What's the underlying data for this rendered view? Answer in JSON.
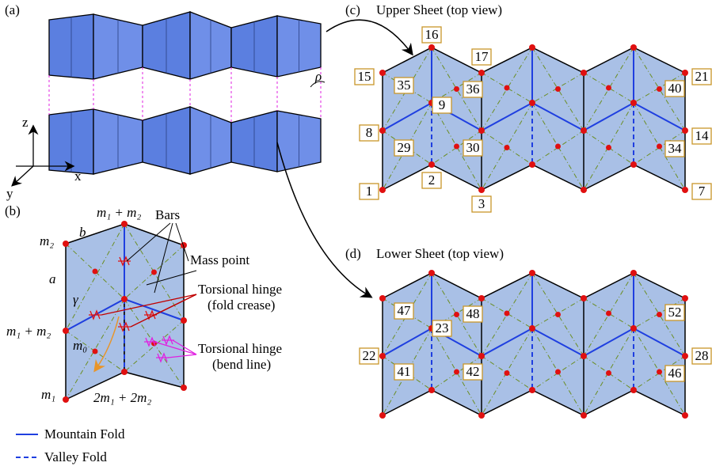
{
  "panel_a": {
    "label": "(a)",
    "angle": "ρ",
    "axes": {
      "z": "z",
      "x": "x",
      "y": "y"
    }
  },
  "panel_b": {
    "label": "(b)",
    "top_mass": "m₁ + m₂",
    "edge_b": "b",
    "left_top_mass": "m₂",
    "edge_a": "a",
    "angle": "γ",
    "left_mid_mass": "m₁ + m₂",
    "center_mass": "m₀",
    "bottom_left_mass": "m₁",
    "bottom_mass": "2m₁ + 2m₂",
    "callouts": {
      "bars": "Bars",
      "mass_point": "Mass point",
      "hinge_crease": [
        "Torsional hinge",
        "(fold crease)"
      ],
      "hinge_bend": [
        "Torsional hinge",
        "(bend line)"
      ]
    }
  },
  "legend": {
    "mountain": "Mountain Fold",
    "valley": "Valley Fold"
  },
  "panel_c": {
    "label": "(c)",
    "title": "Upper Sheet (top view)",
    "node_labels": [
      "16",
      "17",
      "15",
      "35",
      "36",
      "9",
      "8",
      "29",
      "30",
      "1",
      "2",
      "3",
      "21",
      "40",
      "14",
      "34",
      "7"
    ]
  },
  "panel_d": {
    "label": "(d)",
    "title": "Lower Sheet (top view)",
    "node_labels": [
      "47",
      "48",
      "23",
      "22",
      "41",
      "42",
      "52",
      "28",
      "46"
    ]
  }
}
